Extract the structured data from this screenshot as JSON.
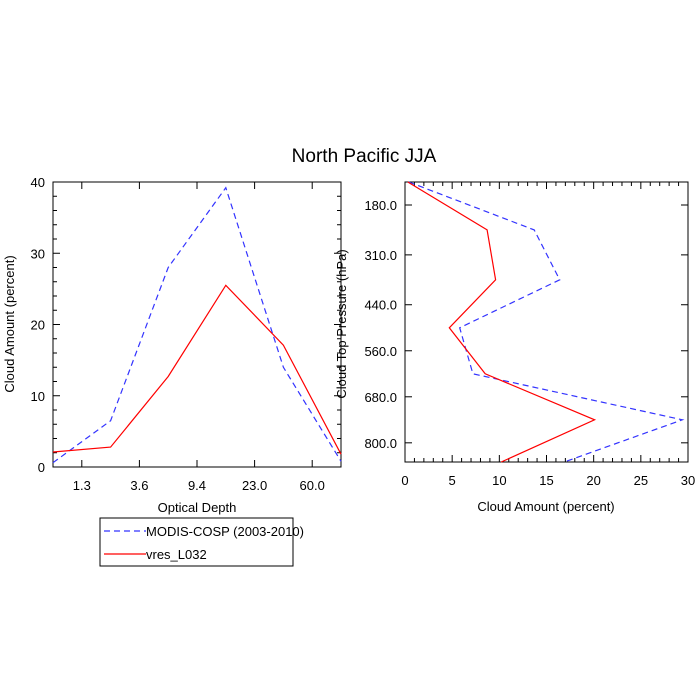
{
  "title": "North Pacific JJA",
  "colors": {
    "obs": "#3333ff",
    "model": "#ff0000"
  },
  "chart_data": [
    {
      "type": "line",
      "xlabel": "Optical Depth",
      "ylabel": "Cloud Amount (percent)",
      "x_tick_labels": [
        "1.3",
        "3.6",
        "9.4",
        "23.0",
        "60.0"
      ],
      "y_ticks": [
        0,
        10,
        20,
        30,
        40
      ],
      "ylim": [
        0,
        40
      ],
      "series": [
        {
          "name": "MODIS-COSP (2003-2010)",
          "style": "dashed",
          "color": "#3333ff",
          "values": [
            0.6,
            6.5,
            28.0,
            39.2,
            14.0,
            0.8
          ]
        },
        {
          "name": "vres_L032",
          "style": "solid",
          "color": "#ff0000",
          "values": [
            2.1,
            2.8,
            12.7,
            25.5,
            17.1,
            1.8
          ]
        }
      ]
    },
    {
      "type": "line",
      "xlabel": "Cloud Amount (percent)",
      "ylabel": "Cloud Top Pressure (hPa)",
      "x_ticks": [
        0,
        5,
        10,
        15,
        20,
        25,
        30
      ],
      "xlim": [
        0,
        30
      ],
      "y_tick_labels": [
        "180.0",
        "310.0",
        "440.0",
        "560.0",
        "680.0",
        "800.0"
      ],
      "y_tick_values": [
        180,
        310,
        440,
        560,
        680,
        800
      ],
      "ylim": [
        120,
        850
      ],
      "series": [
        {
          "name": "MODIS-COSP (2003-2010)",
          "style": "dashed",
          "color": "#3333ff",
          "pressure": [
            120,
            245,
            375,
            500,
            620,
            740,
            850
          ],
          "values": [
            0.4,
            13.7,
            16.4,
            5.8,
            7.2,
            29.4,
            16.9
          ]
        },
        {
          "name": "vres_L032",
          "style": "solid",
          "color": "#ff0000",
          "pressure": [
            120,
            245,
            375,
            500,
            620,
            740,
            850
          ],
          "values": [
            0.3,
            8.7,
            9.6,
            4.7,
            8.5,
            20.1,
            10.2
          ]
        }
      ]
    }
  ],
  "legend": {
    "entries": [
      "MODIS-COSP (2003-2010)",
      "vres_L032"
    ]
  }
}
